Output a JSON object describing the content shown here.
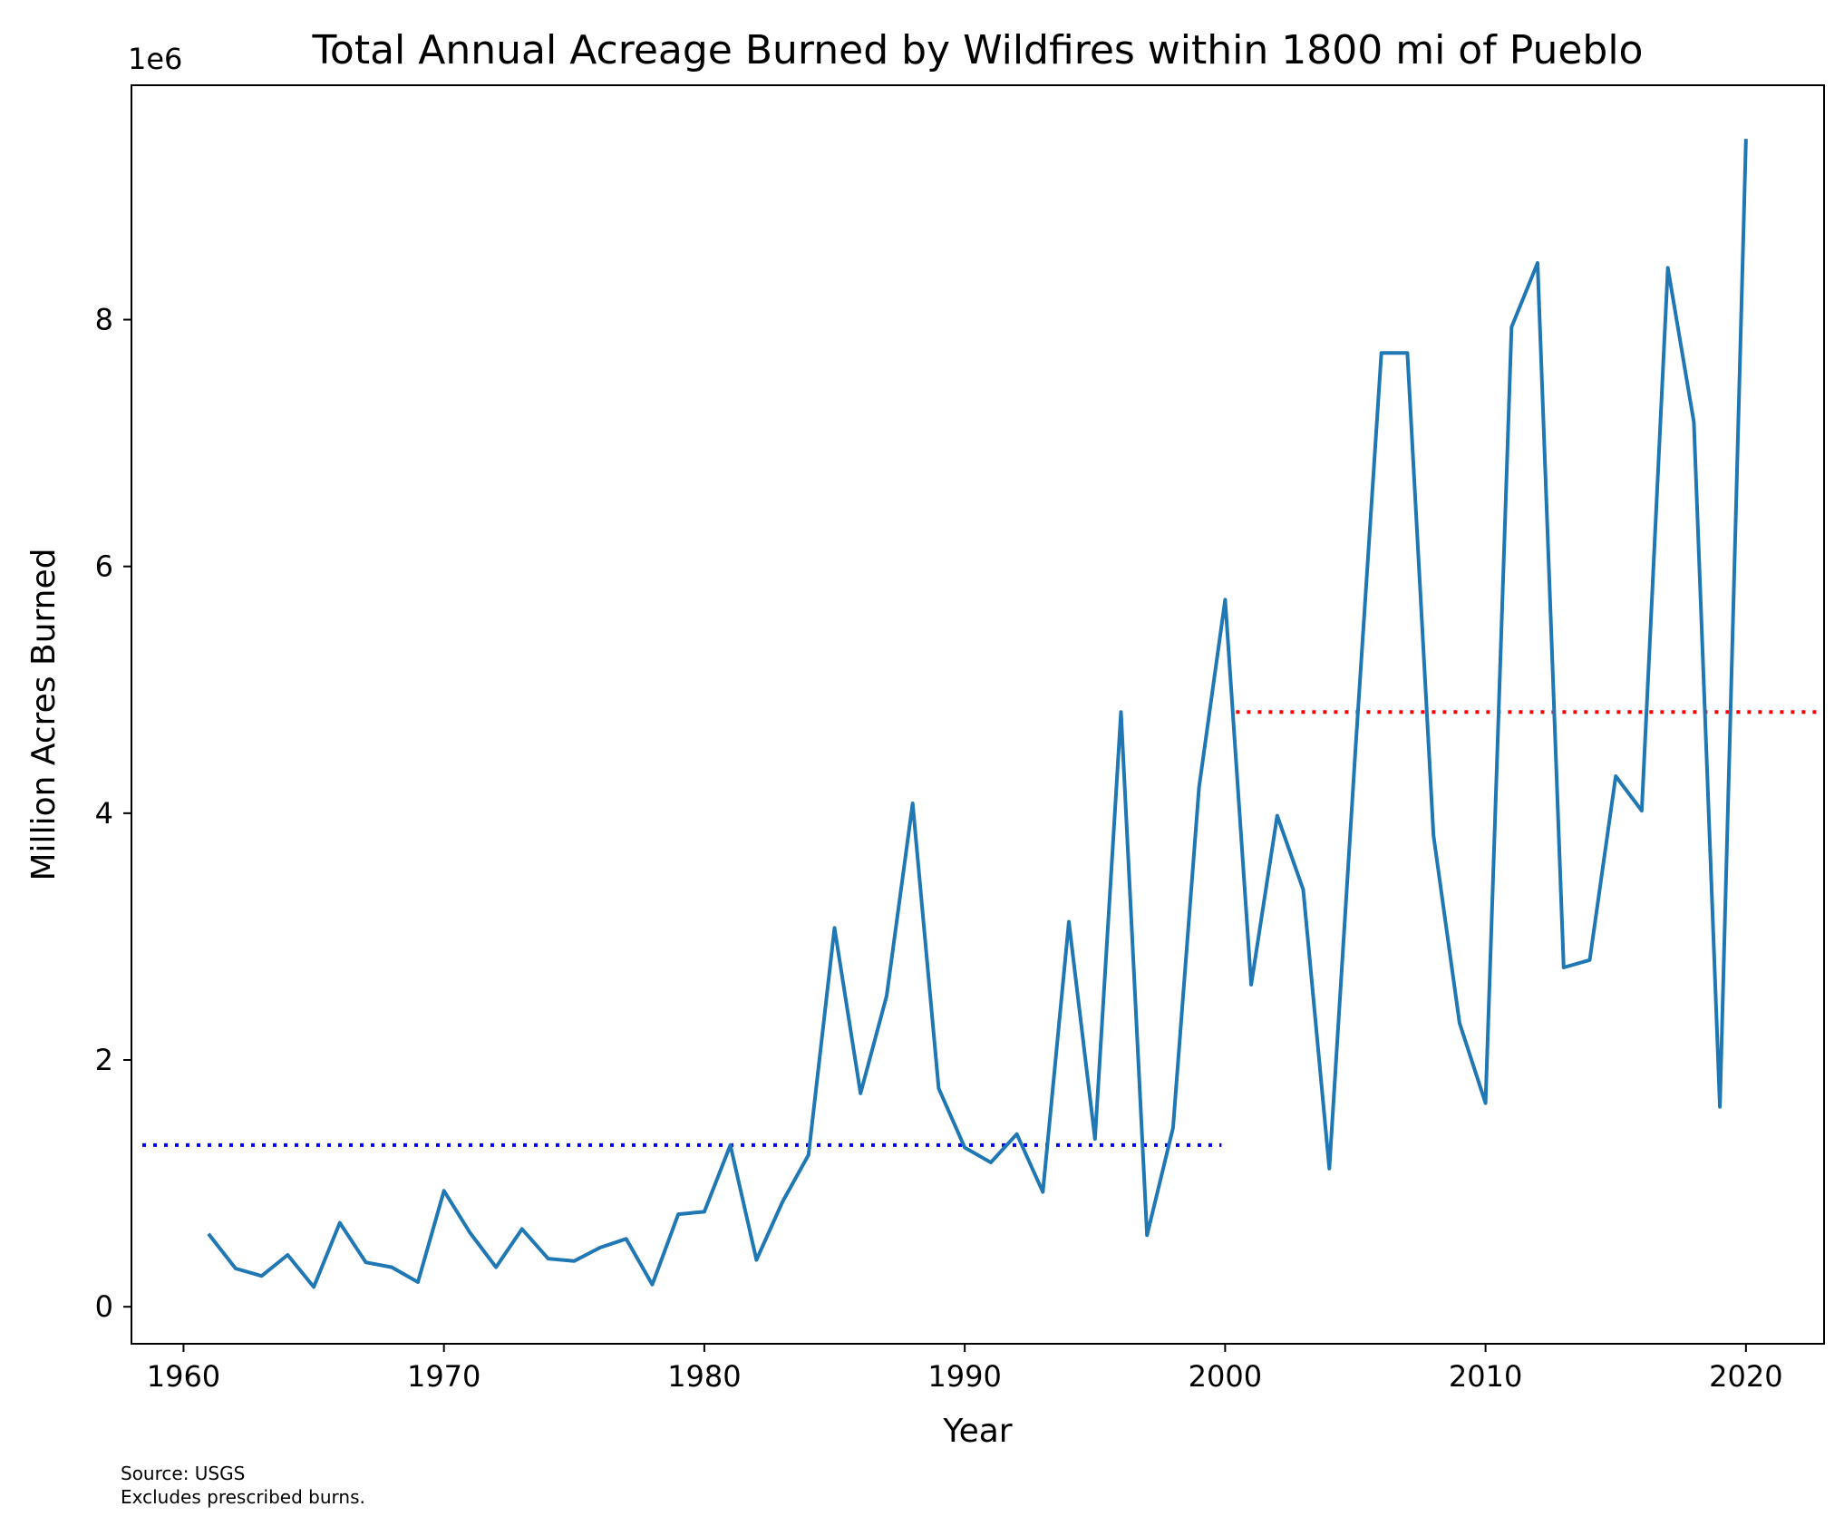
{
  "chart_data": {
    "type": "line",
    "title": "Total Annual Acreage Burned by Wildfires within 1800 mi of Pueblo",
    "xlabel": "Year",
    "ylabel": "Million Acres Burned",
    "y_offset_label": "1e6",
    "xlim": [
      1958,
      2023
    ],
    "ylim": [
      -300000,
      9900000
    ],
    "x_ticks": [
      1960,
      1970,
      1980,
      1990,
      2000,
      2010,
      2020
    ],
    "y_ticks": [
      0,
      2000000,
      4000000,
      6000000,
      8000000
    ],
    "y_tick_labels": [
      "0",
      "2",
      "4",
      "6",
      "8"
    ],
    "grid": false,
    "series": [
      {
        "color": "#1f77b4",
        "x": [
          1961,
          1962,
          1963,
          1964,
          1965,
          1966,
          1967,
          1968,
          1969,
          1970,
          1971,
          1972,
          1973,
          1974,
          1975,
          1976,
          1977,
          1978,
          1979,
          1980,
          1981,
          1982,
          1983,
          1984,
          1985,
          1986,
          1987,
          1988,
          1989,
          1990,
          1991,
          1992,
          1993,
          1994,
          1995,
          1996,
          1997,
          1998,
          1999,
          2000,
          2001,
          2002,
          2003,
          2004,
          2005,
          2006,
          2007,
          2008,
          2009,
          2010,
          2011,
          2012,
          2013,
          2014,
          2015,
          2016,
          2017,
          2018,
          2019,
          2020
        ],
        "y": [
          580000,
          310000,
          250000,
          420000,
          160000,
          680000,
          360000,
          320000,
          200000,
          940000,
          600000,
          320000,
          630000,
          390000,
          370000,
          480000,
          550000,
          180000,
          750000,
          770000,
          1310000,
          380000,
          850000,
          1230000,
          3070000,
          1730000,
          2520000,
          4080000,
          1770000,
          1290000,
          1170000,
          1400000,
          930000,
          3120000,
          1360000,
          4820000,
          580000,
          1450000,
          4210000,
          5730000,
          2610000,
          3980000,
          3380000,
          1120000,
          4500000,
          7730000,
          7730000,
          3820000,
          2300000,
          1650000,
          7940000,
          8460000,
          2750000,
          2810000,
          4300000,
          4020000,
          8420000,
          7170000,
          1620000,
          9450000
        ]
      }
    ],
    "reference_lines": [
      {
        "color": "#0000ff",
        "style": "dotted",
        "y": 1310000,
        "x_range": [
          1958,
          2000
        ]
      },
      {
        "color": "#ff0000",
        "style": "dotted",
        "y": 4820000,
        "x_range": [
          2000,
          2023
        ]
      }
    ],
    "footnote": [
      "Source: USGS",
      "Excludes prescribed burns."
    ]
  }
}
